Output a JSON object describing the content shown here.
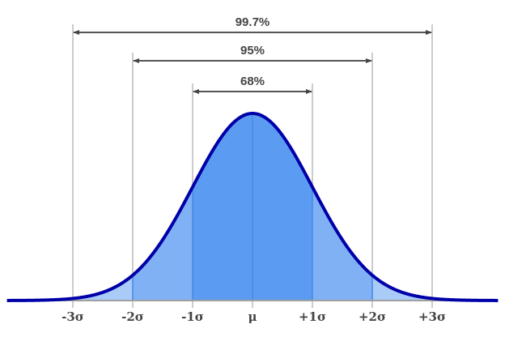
{
  "chart_data": {
    "type": "area",
    "title": "",
    "xlabel": "",
    "ylabel": "",
    "description": "Standard normal distribution with shaded sigma bands",
    "x_ticks": [
      "-3σ",
      "-2σ",
      "-1σ",
      "μ",
      "+1σ",
      "+2σ",
      "+3σ"
    ],
    "x_tick_values": [
      -3,
      -2,
      -1,
      0,
      1,
      2,
      3
    ],
    "xlim": [
      -4,
      4
    ],
    "grid": false,
    "intervals": [
      {
        "label": "68%",
        "from": -1,
        "to": 1,
        "percent": 68
      },
      {
        "label": "95%",
        "from": -2,
        "to": 2,
        "percent": 95
      },
      {
        "label": "99.7%",
        "from": -3,
        "to": 3,
        "percent": 99.7
      }
    ],
    "bands": [
      {
        "from": -1,
        "to": 1,
        "color": "#5b9cf2"
      },
      {
        "from": -2,
        "to": -1,
        "color": "#80b1f5"
      },
      {
        "from": 1,
        "to": 2,
        "color": "#80b1f5"
      },
      {
        "from": -3,
        "to": -2,
        "color": "#a9cbf7"
      },
      {
        "from": 2,
        "to": 3,
        "color": "#a9cbf7"
      }
    ],
    "curve_color": "#0000a8"
  },
  "colors": {
    "curve": "#0000a8",
    "band1": "#5b9cf2",
    "band2": "#80b1f5",
    "band3": "#a9cbf7",
    "band_divider": "#3a86ee",
    "guide": "#b0b0b0",
    "axis": "#a0a0a0",
    "text": "#444444"
  }
}
